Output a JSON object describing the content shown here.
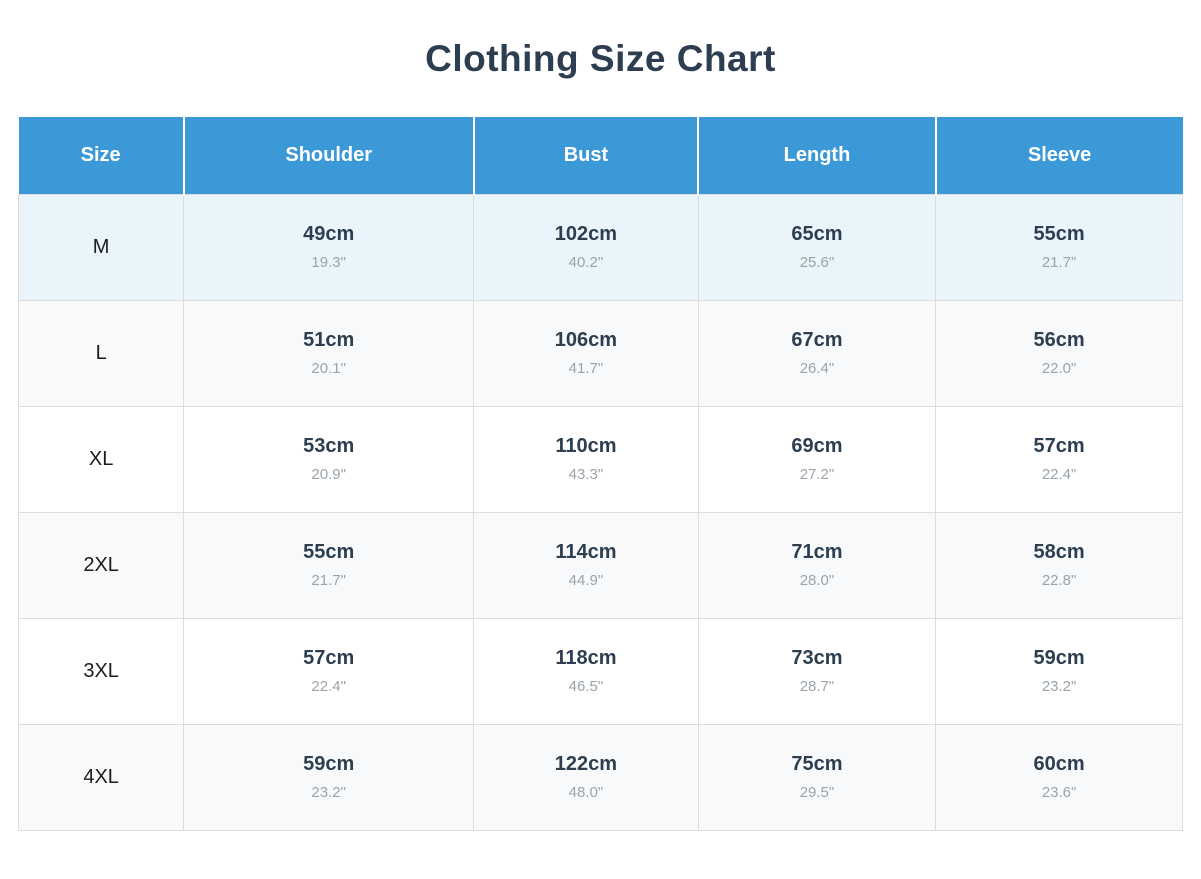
{
  "page": {
    "title": "Clothing Size Chart"
  },
  "colors": {
    "header_bg": "#3b99d8",
    "header_text": "#ffffff",
    "highlight_row_bg": "#e9f4fb",
    "stripe_row_bg": "#f8f9fa",
    "plain_row_bg": "#ffffff",
    "title_text": "#2c3e50",
    "cm_text": "#2c3e50",
    "inch_text": "#9aa3ab",
    "border": "#dddddd"
  },
  "chart_data": {
    "type": "table",
    "title": "Clothing Size Chart",
    "columns": [
      "Size",
      "Shoulder",
      "Bust",
      "Length",
      "Sleeve"
    ],
    "rows": [
      {
        "size": "M",
        "highlighted": true,
        "values": [
          {
            "cm": "49cm",
            "inch": "19.3\""
          },
          {
            "cm": "102cm",
            "inch": "40.2\""
          },
          {
            "cm": "65cm",
            "inch": "25.6\""
          },
          {
            "cm": "55cm",
            "inch": "21.7\""
          }
        ]
      },
      {
        "size": "L",
        "highlighted": false,
        "values": [
          {
            "cm": "51cm",
            "inch": "20.1\""
          },
          {
            "cm": "106cm",
            "inch": "41.7\""
          },
          {
            "cm": "67cm",
            "inch": "26.4\""
          },
          {
            "cm": "56cm",
            "inch": "22.0\""
          }
        ]
      },
      {
        "size": "XL",
        "highlighted": false,
        "values": [
          {
            "cm": "53cm",
            "inch": "20.9\""
          },
          {
            "cm": "110cm",
            "inch": "43.3\""
          },
          {
            "cm": "69cm",
            "inch": "27.2\""
          },
          {
            "cm": "57cm",
            "inch": "22.4\""
          }
        ]
      },
      {
        "size": "2XL",
        "highlighted": false,
        "values": [
          {
            "cm": "55cm",
            "inch": "21.7\""
          },
          {
            "cm": "114cm",
            "inch": "44.9\""
          },
          {
            "cm": "71cm",
            "inch": "28.0\""
          },
          {
            "cm": "58cm",
            "inch": "22.8\""
          }
        ]
      },
      {
        "size": "3XL",
        "highlighted": false,
        "values": [
          {
            "cm": "57cm",
            "inch": "22.4\""
          },
          {
            "cm": "118cm",
            "inch": "46.5\""
          },
          {
            "cm": "73cm",
            "inch": "28.7\""
          },
          {
            "cm": "59cm",
            "inch": "23.2\""
          }
        ]
      },
      {
        "size": "4XL",
        "highlighted": false,
        "values": [
          {
            "cm": "59cm",
            "inch": "23.2\""
          },
          {
            "cm": "122cm",
            "inch": "48.0\""
          },
          {
            "cm": "75cm",
            "inch": "29.5\""
          },
          {
            "cm": "60cm",
            "inch": "23.6\""
          }
        ]
      }
    ]
  }
}
